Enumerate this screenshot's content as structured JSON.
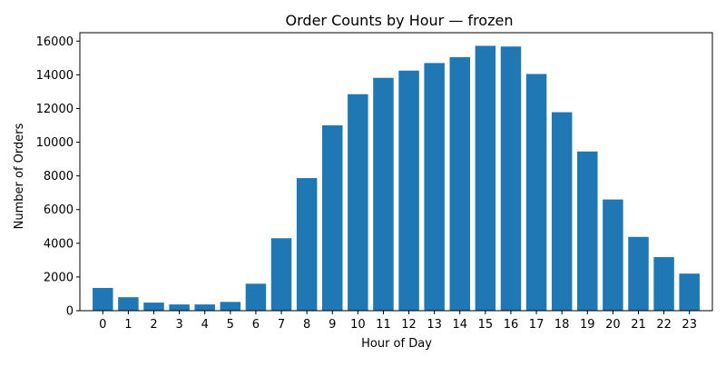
{
  "chart_data": {
    "type": "bar",
    "title": "Order Counts by Hour — frozen",
    "xlabel": "Hour of Day",
    "ylabel": "Number of Orders",
    "categories": [
      "0",
      "1",
      "2",
      "3",
      "4",
      "5",
      "6",
      "7",
      "8",
      "9",
      "10",
      "11",
      "12",
      "13",
      "14",
      "15",
      "16",
      "17",
      "18",
      "19",
      "20",
      "21",
      "22",
      "23"
    ],
    "values": [
      1350,
      800,
      480,
      370,
      370,
      520,
      1600,
      4300,
      7870,
      11000,
      12850,
      13820,
      14250,
      14700,
      15050,
      15720,
      15680,
      14050,
      11780,
      9450,
      6600,
      4380,
      3180,
      2200
    ],
    "ylim": [
      0,
      16500
    ],
    "yticks": [
      0,
      2000,
      4000,
      6000,
      8000,
      10000,
      12000,
      14000,
      16000
    ],
    "ytick_labels": [
      "0",
      "2000",
      "4000",
      "6000",
      "8000",
      "10000",
      "12000",
      "14000",
      "16000"
    ],
    "grid": false,
    "legend": "none",
    "bar_color": "#1f77b4"
  }
}
